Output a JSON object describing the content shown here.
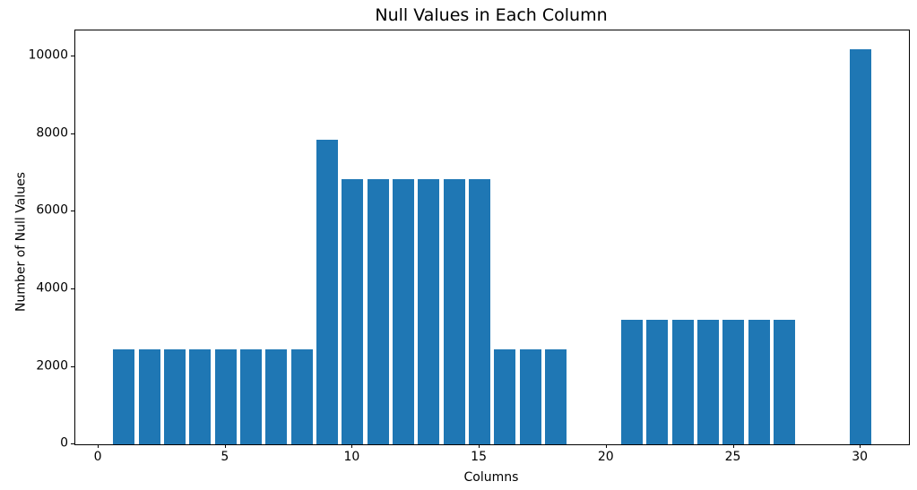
{
  "chart_data": {
    "type": "bar",
    "title": "Null Values in Each Column",
    "xlabel": "Columns",
    "ylabel": "Number of Null Values",
    "bar_color": "#1f77b4",
    "bar_width": 0.85,
    "x": [
      0,
      1,
      2,
      3,
      4,
      5,
      6,
      7,
      8,
      9,
      10,
      11,
      12,
      13,
      14,
      15,
      16,
      17,
      18,
      19,
      20,
      21,
      22,
      23,
      24,
      25,
      26,
      27,
      28,
      29,
      30
    ],
    "values": [
      0,
      2440,
      2440,
      2440,
      2440,
      2440,
      2440,
      2440,
      2440,
      7860,
      6840,
      6840,
      6840,
      6840,
      6840,
      6840,
      2440,
      2440,
      2440,
      0,
      0,
      3210,
      3210,
      3210,
      3210,
      3210,
      3210,
      3210,
      0,
      0,
      10190
    ],
    "xticks": [
      0,
      5,
      10,
      15,
      20,
      25,
      30
    ],
    "yticks": [
      0,
      2000,
      4000,
      6000,
      8000,
      10000
    ],
    "xlim": [
      -0.92,
      31.9
    ],
    "ylim": [
      0,
      10680
    ],
    "grid": false,
    "legend": null
  }
}
